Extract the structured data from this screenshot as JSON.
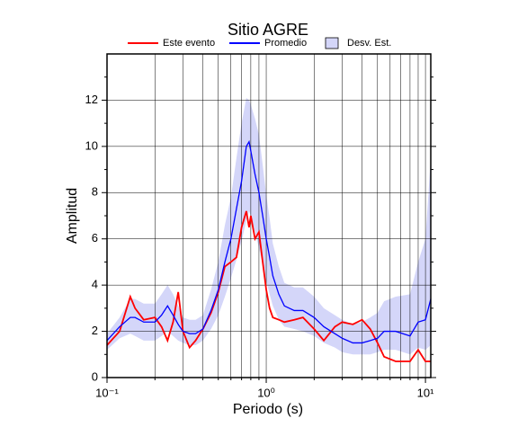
{
  "chart_data": {
    "type": "line",
    "title": "Sitio AGRE",
    "x_label": "Periodo (s)",
    "y_label": "Amplitud",
    "x_scale": "log",
    "xlim": [
      0.1,
      10.8
    ],
    "ylim": [
      0,
      14
    ],
    "xticks": [
      {
        "value": 0.1,
        "label": "10⁻¹"
      },
      {
        "value": 1,
        "label": "10⁰"
      },
      {
        "value": 10,
        "label": "10¹"
      }
    ],
    "xminor": [
      0.2,
      0.3,
      0.4,
      0.5,
      0.6,
      0.7,
      0.8,
      0.9,
      2,
      3,
      4,
      5,
      6,
      7,
      8,
      9
    ],
    "yticks": [
      0,
      2,
      4,
      6,
      8,
      10,
      12
    ],
    "yminor": [
      1,
      3,
      5,
      7,
      9,
      11,
      13
    ],
    "grid": true,
    "x": [
      0.1,
      0.12,
      0.14,
      0.15,
      0.17,
      0.2,
      0.22,
      0.24,
      0.26,
      0.28,
      0.3,
      0.33,
      0.36,
      0.4,
      0.45,
      0.5,
      0.55,
      0.6,
      0.65,
      0.7,
      0.75,
      0.78,
      0.8,
      0.85,
      0.9,
      0.95,
      1.0,
      1.05,
      1.1,
      1.2,
      1.3,
      1.5,
      1.7,
      2.0,
      2.3,
      2.7,
      3.0,
      3.5,
      4.0,
      4.5,
      5.0,
      5.5,
      6.5,
      8.0,
      9.0,
      10.0,
      10.8
    ],
    "series": [
      {
        "name": "Este evento",
        "color": "#ff0000",
        "values": [
          1.4,
          2.0,
          3.5,
          3.0,
          2.5,
          2.6,
          2.2,
          1.6,
          2.4,
          3.7,
          2.0,
          1.3,
          1.6,
          2.1,
          2.8,
          3.7,
          4.8,
          5.0,
          5.2,
          6.5,
          7.2,
          6.5,
          7.0,
          6.0,
          6.3,
          5.0,
          3.8,
          3.0,
          2.6,
          2.5,
          2.4,
          2.5,
          2.6,
          2.1,
          1.6,
          2.2,
          2.4,
          2.3,
          2.5,
          2.1,
          1.5,
          0.9,
          0.7,
          0.7,
          1.2,
          0.7,
          0.7
        ]
      },
      {
        "name": "Promedio",
        "color": "#0000ff",
        "values": [
          1.6,
          2.2,
          2.6,
          2.6,
          2.4,
          2.4,
          2.7,
          3.1,
          2.7,
          2.3,
          2.0,
          1.9,
          1.9,
          2.1,
          2.9,
          3.8,
          5.0,
          6.0,
          7.3,
          8.5,
          10.0,
          10.2,
          9.8,
          8.8,
          8.0,
          7.0,
          6.0,
          5.2,
          4.4,
          3.6,
          3.1,
          2.9,
          2.9,
          2.6,
          2.2,
          1.9,
          1.7,
          1.5,
          1.5,
          1.6,
          1.7,
          2.0,
          2.0,
          1.8,
          2.4,
          2.5,
          3.4
        ]
      }
    ],
    "band": {
      "name": "Desv. Est.",
      "color": "#d4d6f9",
      "low": [
        1.2,
        1.7,
        1.9,
        1.8,
        1.6,
        1.6,
        1.8,
        2.0,
        1.8,
        1.6,
        1.5,
        1.4,
        1.4,
        1.6,
        2.1,
        2.7,
        3.5,
        4.3,
        5.1,
        5.9,
        6.8,
        7.2,
        7.0,
        6.3,
        5.6,
        4.9,
        4.2,
        3.6,
        3.1,
        2.5,
        2.2,
        2.1,
        2.0,
        1.8,
        1.5,
        1.3,
        1.1,
        1.0,
        1.0,
        1.0,
        1.1,
        1.2,
        1.2,
        1.0,
        1.3,
        1.2,
        1.4
      ],
      "high": [
        1.9,
        2.6,
        3.4,
        3.4,
        3.2,
        3.2,
        3.6,
        4.0,
        3.6,
        3.1,
        2.6,
        2.5,
        2.5,
        2.7,
        3.8,
        5.0,
        6.6,
        7.8,
        9.5,
        11.0,
        12.1,
        12.0,
        11.8,
        11.2,
        10.5,
        9.2,
        7.9,
        6.9,
        5.8,
        4.8,
        4.1,
        3.9,
        3.9,
        3.5,
        3.0,
        2.7,
        2.5,
        2.3,
        2.4,
        2.6,
        2.8,
        3.3,
        3.5,
        3.6,
        5.0,
        6.0,
        9.5
      ]
    }
  }
}
